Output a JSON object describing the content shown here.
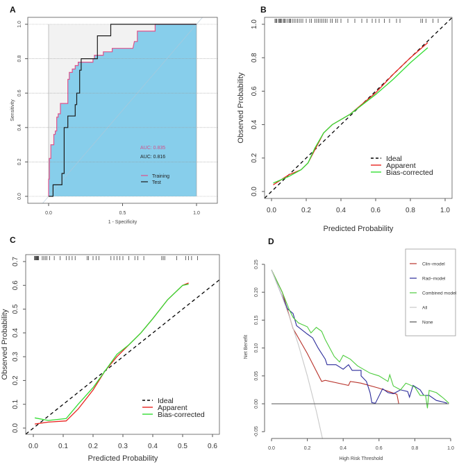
{
  "chart_data": [
    {
      "panel": "A",
      "type": "line",
      "xlabel": "1 - Specificity",
      "ylabel": "Sensitivity",
      "xlim": [
        0,
        1
      ],
      "ylim": [
        0,
        1
      ],
      "xticks": [
        "0.0",
        "0.5",
        "1.0"
      ],
      "yticks": [
        "0.0",
        "0.2",
        "0.4",
        "0.6",
        "0.8",
        "1.0"
      ],
      "grid": true,
      "annotations": [
        {
          "text": "AUC: 0.835",
          "color": "#d0508a"
        },
        {
          "text": "AUC: 0.816",
          "color": "#222222"
        }
      ],
      "legend_position": "bottom-right",
      "series": [
        {
          "name": "Training",
          "color": "#e0508a",
          "x": [
            0,
            0,
            0.005,
            0.005,
            0.015,
            0.015,
            0.035,
            0.035,
            0.045,
            0.045,
            0.055,
            0.055,
            0.065,
            0.065,
            0.08,
            0.08,
            0.13,
            0.13,
            0.14,
            0.14,
            0.16,
            0.16,
            0.18,
            0.18,
            0.2,
            0.2,
            0.3,
            0.3,
            0.31,
            0.31,
            0.37,
            0.37,
            0.43,
            0.43,
            0.57,
            0.58,
            0.6,
            0.6,
            0.72,
            0.72,
            1
          ],
          "y": [
            0,
            0.1,
            0.1,
            0.22,
            0.22,
            0.3,
            0.3,
            0.36,
            0.36,
            0.38,
            0.38,
            0.46,
            0.46,
            0.48,
            0.48,
            0.54,
            0.54,
            0.68,
            0.68,
            0.72,
            0.72,
            0.74,
            0.74,
            0.76,
            0.76,
            0.78,
            0.78,
            0.8,
            0.8,
            0.82,
            0.82,
            0.84,
            0.84,
            0.86,
            0.86,
            0.9,
            0.9,
            0.96,
            0.96,
            1,
            1
          ]
        },
        {
          "name": "Test",
          "color": "#1a1a1a",
          "x": [
            0,
            0.03,
            0.03,
            0.09,
            0.09,
            0.105,
            0.105,
            0.13,
            0.13,
            0.18,
            0.18,
            0.19,
            0.19,
            0.21,
            0.21,
            0.22,
            0.22,
            0.33,
            0.33,
            0.42,
            0.42,
            1
          ],
          "y": [
            0,
            0,
            0.067,
            0.067,
            0.133,
            0.133,
            0.4,
            0.4,
            0.467,
            0.467,
            0.533,
            0.533,
            0.6,
            0.6,
            0.733,
            0.733,
            0.8,
            0.8,
            0.933,
            0.933,
            1,
            1
          ]
        }
      ],
      "fill_colors": {
        "area": "#87ceeb",
        "background": "#f2f2f2"
      }
    },
    {
      "panel": "B",
      "type": "line",
      "xlabel": "Predicted Probability",
      "ylabel": "Observed Probability",
      "xlim": [
        -0.04,
        1.04
      ],
      "ylim": [
        -0.04,
        1.04
      ],
      "xticks": [
        "0.0",
        "0.2",
        "0.4",
        "0.6",
        "0.8",
        "1.0"
      ],
      "yticks": [
        "0.0",
        "0.2",
        "0.4",
        "0.6",
        "0.8",
        "1.0"
      ],
      "legend_position": "bottom-right",
      "rug": [
        0.02,
        0.025,
        0.03,
        0.04,
        0.045,
        0.05,
        0.055,
        0.06,
        0.07,
        0.075,
        0.08,
        0.09,
        0.1,
        0.105,
        0.11,
        0.12,
        0.13,
        0.14,
        0.15,
        0.16,
        0.17,
        0.18,
        0.2,
        0.22,
        0.23,
        0.25,
        0.26,
        0.27,
        0.28,
        0.29,
        0.3,
        0.31,
        0.32,
        0.34,
        0.35,
        0.37,
        0.38,
        0.4,
        0.44,
        0.48,
        0.52,
        0.55,
        0.58,
        0.6,
        0.62,
        0.65,
        0.68,
        0.72,
        0.74,
        0.86,
        0.87,
        0.89,
        0.93,
        0.96
      ],
      "series": [
        {
          "name": "Ideal",
          "color": "#000000",
          "dash": true,
          "x": [
            -0.04,
            1.04
          ],
          "y": [
            -0.04,
            1.04
          ]
        },
        {
          "name": "Apparent",
          "color": "#e8231e",
          "x": [
            0.01,
            0.1,
            0.17,
            0.21,
            0.25,
            0.3,
            0.35,
            0.45,
            0.6,
            0.7,
            0.8,
            0.9
          ],
          "y": [
            0.04,
            0.1,
            0.13,
            0.17,
            0.25,
            0.35,
            0.4,
            0.46,
            0.59,
            0.7,
            0.8,
            0.89
          ]
        },
        {
          "name": "Bias-corrected",
          "color": "#33dd33",
          "x": [
            0.01,
            0.1,
            0.17,
            0.21,
            0.25,
            0.3,
            0.35,
            0.45,
            0.6,
            0.7,
            0.8,
            0.9
          ],
          "y": [
            0.05,
            0.09,
            0.13,
            0.17,
            0.26,
            0.35,
            0.4,
            0.46,
            0.58,
            0.67,
            0.77,
            0.86
          ]
        }
      ]
    },
    {
      "panel": "C",
      "type": "line",
      "xlabel": "Predicted Probability",
      "ylabel": "Observed Probability",
      "xlim": [
        -0.025,
        0.625
      ],
      "ylim": [
        -0.025,
        0.73
      ],
      "xticks": [
        "0.0",
        "0.1",
        "0.2",
        "0.3",
        "0.4",
        "0.5",
        "0.6"
      ],
      "yticks": [
        "0.0",
        "0.1",
        "0.2",
        "0.3",
        "0.4",
        "0.5",
        "0.6",
        "0.7"
      ],
      "legend_position": "bottom-right",
      "rug": [
        0.004,
        0.006,
        0.008,
        0.01,
        0.012,
        0.014,
        0.016,
        0.018,
        0.03,
        0.035,
        0.04,
        0.045,
        0.055,
        0.07,
        0.09,
        0.11,
        0.12,
        0.13,
        0.14,
        0.18,
        0.185,
        0.2,
        0.21,
        0.22,
        0.26,
        0.27,
        0.28,
        0.29,
        0.3,
        0.32,
        0.34,
        0.35,
        0.37,
        0.43,
        0.435,
        0.44,
        0.48,
        0.51,
        0.52,
        0.53,
        0.55
      ],
      "series": [
        {
          "name": "Ideal",
          "color": "#000000",
          "dash": true,
          "x": [
            -0.025,
            0.625
          ],
          "y": [
            -0.025,
            0.625
          ]
        },
        {
          "name": "Apparent",
          "color": "#e8231e",
          "x": [
            0.005,
            0.05,
            0.11,
            0.15,
            0.2,
            0.24,
            0.28,
            0.32,
            0.36,
            0.4,
            0.45,
            0.5,
            0.52
          ],
          "y": [
            0.017,
            0.025,
            0.03,
            0.08,
            0.16,
            0.24,
            0.3,
            0.35,
            0.4,
            0.46,
            0.54,
            0.6,
            0.61
          ]
        },
        {
          "name": "Bias-corrected",
          "color": "#33dd33",
          "x": [
            0.005,
            0.05,
            0.11,
            0.15,
            0.2,
            0.24,
            0.28,
            0.32,
            0.36,
            0.4,
            0.45,
            0.5,
            0.52
          ],
          "y": [
            0.043,
            0.032,
            0.04,
            0.1,
            0.17,
            0.24,
            0.31,
            0.35,
            0.4,
            0.46,
            0.54,
            0.6,
            0.605
          ]
        }
      ]
    },
    {
      "panel": "D",
      "type": "line",
      "xlabel": "High Risk Threshold",
      "ylabel": "Net Benefit",
      "xlim": [
        0,
        1
      ],
      "ylim": [
        -0.05,
        0.25
      ],
      "xticks": [
        "0.0",
        "0.2",
        "0.4",
        "0.6",
        "0.8",
        "1.0"
      ],
      "yticks": [
        "-0.05",
        "0.00",
        "0.05",
        "0.10",
        "0.15",
        "0.20",
        "0.25"
      ],
      "legend_position": "top-right",
      "series": [
        {
          "name": "Clin−model",
          "color": "#b8322a",
          "x": [
            0,
            0.06,
            0.12,
            0.2,
            0.28,
            0.3,
            0.43,
            0.44,
            0.5,
            0.6,
            0.7,
            0.71,
            0.99
          ],
          "y": [
            0.24,
            0.2,
            0.135,
            0.09,
            0.04,
            0.042,
            0.033,
            0.04,
            0.037,
            0.028,
            0.017,
            0,
            0
          ]
        },
        {
          "name": "Rad−model",
          "color": "#2b2b9a",
          "x": [
            0,
            0.05,
            0.09,
            0.12,
            0.14,
            0.2,
            0.23,
            0.26,
            0.3,
            0.31,
            0.36,
            0.4,
            0.43,
            0.45,
            0.5,
            0.5,
            0.53,
            0.55,
            0.56,
            0.58,
            0.62,
            0.65,
            0.68,
            0.72,
            0.76,
            0.77,
            0.79,
            0.83,
            0.85,
            0.88,
            0.92,
            0.96,
            0.98
          ],
          "y": [
            0.24,
            0.2,
            0.17,
            0.162,
            0.14,
            0.125,
            0.118,
            0.1,
            0.08,
            0.07,
            0.07,
            0.062,
            0.07,
            0.06,
            0.06,
            0.05,
            0.04,
            0.02,
            0.002,
            0.001,
            0.027,
            0.02,
            0.018,
            0.025,
            0.022,
            0.012,
            0.033,
            0.025,
            0.015,
            0.015,
            0.006,
            0.003,
            0.001
          ]
        },
        {
          "name": "Combined model",
          "color": "#4ccc3c",
          "x": [
            0,
            0.06,
            0.1,
            0.12,
            0.15,
            0.2,
            0.22,
            0.25,
            0.28,
            0.3,
            0.35,
            0.38,
            0.4,
            0.44,
            0.48,
            0.55,
            0.6,
            0.65,
            0.66,
            0.68,
            0.72,
            0.75,
            0.8,
            0.83,
            0.86,
            0.87,
            0.88,
            0.92,
            0.96,
            0.99
          ],
          "y": [
            0.24,
            0.2,
            0.168,
            0.155,
            0.145,
            0.138,
            0.127,
            0.137,
            0.13,
            0.115,
            0.085,
            0.075,
            0.087,
            0.08,
            0.068,
            0.055,
            0.05,
            0.04,
            0.052,
            0.032,
            0.025,
            0.037,
            0.03,
            0.015,
            0.015,
            -0.008,
            0.024,
            0.02,
            0.01,
            0.001
          ]
        },
        {
          "name": "All",
          "color": "#c8c8c8",
          "x": [
            0,
            0.05,
            0.1,
            0.15,
            0.2,
            0.25,
            0.285
          ],
          "y": [
            0.24,
            0.2,
            0.156,
            0.106,
            0.05,
            -0.013,
            -0.063
          ]
        },
        {
          "name": "None",
          "color": "#555555",
          "x": [
            0,
            0.99
          ],
          "y": [
            0,
            0
          ]
        }
      ]
    }
  ],
  "panel_labels": [
    "A",
    "B",
    "C",
    "D"
  ]
}
